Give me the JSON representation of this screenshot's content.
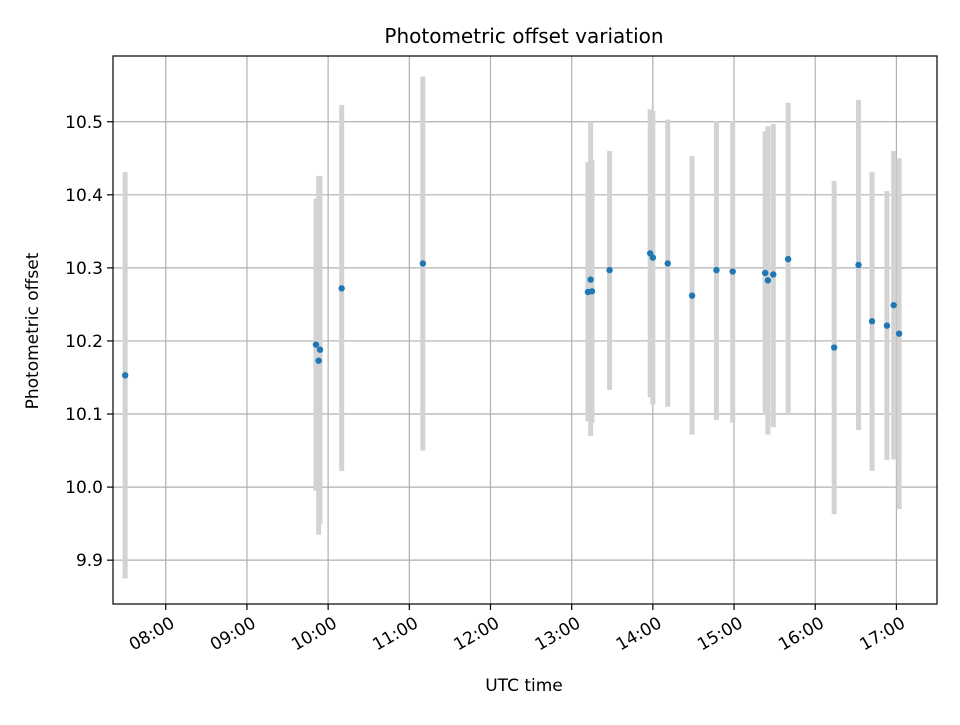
{
  "chart_data": {
    "type": "scatter",
    "title": "Photometric offset variation",
    "xlabel": "UTC time",
    "ylabel": "Photometric offset",
    "xlim": [
      "07:21",
      "17:30"
    ],
    "ylim": [
      9.84,
      10.59
    ],
    "x_ticks": [
      "08:00",
      "09:00",
      "10:00",
      "11:00",
      "12:00",
      "13:00",
      "14:00",
      "15:00",
      "16:00",
      "17:00"
    ],
    "y_ticks": [
      "9.9",
      "10.0",
      "10.1",
      "10.2",
      "10.3",
      "10.4",
      "10.5"
    ],
    "grid": true,
    "colors": {
      "points": "#1f77b4",
      "errorbars": "#d3d3d3",
      "grid": "#b0b0b0"
    },
    "series": [
      {
        "points": [
          {
            "x": "07:30",
            "y": 10.153,
            "ymin": 9.875,
            "ymax": 10.431
          },
          {
            "x": "09:51",
            "y": 10.195,
            "ymin": 9.995,
            "ymax": 10.395
          },
          {
            "x": "09:53",
            "y": 10.173,
            "ymin": 9.935,
            "ymax": 10.426
          },
          {
            "x": "09:54",
            "y": 10.188,
            "ymin": 9.95,
            "ymax": 10.425
          },
          {
            "x": "10:10",
            "y": 10.272,
            "ymin": 10.022,
            "ymax": 10.523
          },
          {
            "x": "11:10",
            "y": 10.306,
            "ymin": 10.05,
            "ymax": 10.562
          },
          {
            "x": "13:12",
            "y": 10.267,
            "ymin": 10.09,
            "ymax": 10.445
          },
          {
            "x": "13:14",
            "y": 10.284,
            "ymin": 10.07,
            "ymax": 10.5
          },
          {
            "x": "13:15",
            "y": 10.268,
            "ymin": 10.088,
            "ymax": 10.448
          },
          {
            "x": "13:28",
            "y": 10.297,
            "ymin": 10.133,
            "ymax": 10.46
          },
          {
            "x": "13:58",
            "y": 10.32,
            "ymin": 10.123,
            "ymax": 10.517
          },
          {
            "x": "14:00",
            "y": 10.314,
            "ymin": 10.113,
            "ymax": 10.515
          },
          {
            "x": "14:11",
            "y": 10.306,
            "ymin": 10.11,
            "ymax": 10.503
          },
          {
            "x": "14:29",
            "y": 10.262,
            "ymin": 10.072,
            "ymax": 10.453
          },
          {
            "x": "14:47",
            "y": 10.297,
            "ymin": 10.092,
            "ymax": 10.501
          },
          {
            "x": "14:59",
            "y": 10.295,
            "ymin": 10.088,
            "ymax": 10.501
          },
          {
            "x": "15:23",
            "y": 10.293,
            "ymin": 10.1,
            "ymax": 10.487
          },
          {
            "x": "15:25",
            "y": 10.283,
            "ymin": 10.072,
            "ymax": 10.494
          },
          {
            "x": "15:29",
            "y": 10.291,
            "ymin": 10.082,
            "ymax": 10.497
          },
          {
            "x": "15:40",
            "y": 10.312,
            "ymin": 10.1,
            "ymax": 10.526
          },
          {
            "x": "16:14",
            "y": 10.191,
            "ymin": 9.963,
            "ymax": 10.419
          },
          {
            "x": "16:32",
            "y": 10.304,
            "ymin": 10.078,
            "ymax": 10.53
          },
          {
            "x": "16:42",
            "y": 10.227,
            "ymin": 10.022,
            "ymax": 10.431
          },
          {
            "x": "16:53",
            "y": 10.221,
            "ymin": 10.037,
            "ymax": 10.405
          },
          {
            "x": "16:58",
            "y": 10.249,
            "ymin": 10.038,
            "ymax": 10.46
          },
          {
            "x": "17:02",
            "y": 10.21,
            "ymin": 9.97,
            "ymax": 10.45
          }
        ]
      }
    ]
  }
}
